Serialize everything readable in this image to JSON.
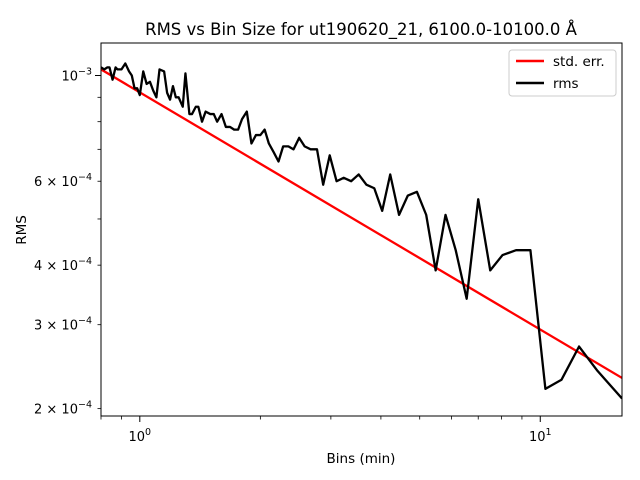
{
  "chart_data": {
    "type": "line",
    "title": "RMS vs Bin Size for ut190620_21, 6100.0-10100.0 Å",
    "xlabel": "Bins (min)",
    "ylabel": "RMS",
    "xscale": "log",
    "yscale": "log",
    "xlim": [
      0.8,
      16.0
    ],
    "ylim": [
      0.000193,
      0.00117
    ],
    "grid": false,
    "legend_position": "top-right",
    "x_major_ticks": [
      {
        "value": 1,
        "label_base": "10",
        "label_exp": "0"
      },
      {
        "value": 10,
        "label_base": "10",
        "label_exp": "1"
      }
    ],
    "y_major_ticks": [
      {
        "value": 0.001,
        "label_base": "10",
        "label_exp": "−3",
        "label_prefix": ""
      }
    ],
    "y_minor_labels": [
      {
        "value": 0.0002,
        "label_prefix": "2 × ",
        "label_base": "10",
        "label_exp": "−4"
      },
      {
        "value": 0.0003,
        "label_prefix": "3 × ",
        "label_base": "10",
        "label_exp": "−4"
      },
      {
        "value": 0.0004,
        "label_prefix": "4 × ",
        "label_base": "10",
        "label_exp": "−4"
      },
      {
        "value": 0.0006,
        "label_prefix": "6 × ",
        "label_base": "10",
        "label_exp": "−4"
      }
    ],
    "series": [
      {
        "name": "std. err.",
        "color": "#ff0000",
        "x": [
          0.8,
          16.0
        ],
        "y": [
          0.00103,
          0.000232
        ]
      },
      {
        "name": "rms",
        "color": "#000000",
        "x": [
          0.8,
          0.815,
          0.83,
          0.84,
          0.855,
          0.87,
          0.88,
          0.9,
          0.92,
          0.94,
          0.955,
          0.97,
          0.985,
          1.0,
          1.02,
          1.04,
          1.06,
          1.08,
          1.1,
          1.12,
          1.15,
          1.17,
          1.19,
          1.21,
          1.23,
          1.25,
          1.28,
          1.3,
          1.33,
          1.35,
          1.38,
          1.4,
          1.43,
          1.46,
          1.5,
          1.53,
          1.56,
          1.6,
          1.64,
          1.68,
          1.72,
          1.76,
          1.8,
          1.85,
          1.9,
          1.95,
          2.0,
          2.05,
          2.1,
          2.16,
          2.22,
          2.28,
          2.35,
          2.42,
          2.5,
          2.58,
          2.67,
          2.77,
          2.87,
          2.98,
          3.1,
          3.23,
          3.37,
          3.52,
          3.68,
          3.85,
          4.03,
          4.22,
          4.44,
          4.67,
          4.92,
          5.19,
          5.48,
          5.8,
          6.15,
          6.55,
          7.0,
          7.5,
          8.05,
          8.7,
          9.45,
          10.3,
          11.3,
          12.5,
          13.9,
          16.0
        ],
        "y": [
          0.00104,
          0.00103,
          0.00104,
          0.00104,
          0.00098,
          0.00104,
          0.00103,
          0.00103,
          0.00106,
          0.00102,
          0.001,
          0.00094,
          0.00094,
          0.00091,
          0.00102,
          0.00096,
          0.00097,
          0.00093,
          0.0009,
          0.00103,
          0.00102,
          0.00092,
          0.00089,
          0.00095,
          0.0009,
          0.0009,
          0.00086,
          0.00101,
          0.00083,
          0.00083,
          0.00086,
          0.00086,
          0.0008,
          0.00084,
          0.00083,
          0.00083,
          0.0008,
          0.00083,
          0.00078,
          0.00078,
          0.00077,
          0.00077,
          0.00081,
          0.00084,
          0.00072,
          0.00075,
          0.00075,
          0.00077,
          0.00072,
          0.00069,
          0.00066,
          0.00071,
          0.00071,
          0.0007,
          0.00074,
          0.00071,
          0.0007,
          0.0007,
          0.00059,
          0.00068,
          0.0006,
          0.00061,
          0.0006,
          0.00062,
          0.00059,
          0.00058,
          0.00052,
          0.00062,
          0.00051,
          0.00056,
          0.00057,
          0.00051,
          0.00039,
          0.00051,
          0.00043,
          0.00034,
          0.00055,
          0.00039,
          0.00042,
          0.00043,
          0.00043,
          0.00022,
          0.00023,
          0.00027,
          0.00024,
          0.00021
        ]
      }
    ]
  }
}
